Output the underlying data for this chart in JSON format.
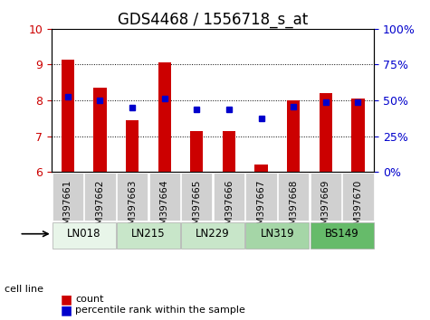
{
  "title": "GDS4468 / 1556718_s_at",
  "samples": [
    "GSM397661",
    "GSM397662",
    "GSM397663",
    "GSM397664",
    "GSM397665",
    "GSM397666",
    "GSM397667",
    "GSM397668",
    "GSM397669",
    "GSM397670"
  ],
  "count_values": [
    9.15,
    8.35,
    7.45,
    9.05,
    7.15,
    7.15,
    6.2,
    8.0,
    8.2,
    8.05
  ],
  "percentile_values": [
    8.1,
    8.0,
    7.8,
    8.05,
    7.75,
    7.75,
    7.5,
    7.82,
    7.95,
    7.95
  ],
  "cell_lines": [
    {
      "name": "LN018",
      "samples": [
        0,
        1
      ],
      "color": "#d4edda"
    },
    {
      "name": "LN215",
      "samples": [
        2,
        3
      ],
      "color": "#c8e6c9"
    },
    {
      "name": "LN229",
      "samples": [
        4,
        5
      ],
      "color": "#c8e6c9"
    },
    {
      "name": "LN319",
      "samples": [
        6,
        7
      ],
      "color": "#a5d6a7"
    },
    {
      "name": "BS149",
      "samples": [
        8,
        9
      ],
      "color": "#66bb6a"
    }
  ],
  "ylim": [
    6,
    10
  ],
  "yticks_left": [
    6,
    7,
    8,
    9,
    10
  ],
  "yticks_right": [
    0,
    25,
    50,
    75,
    100
  ],
  "bar_color": "#cc0000",
  "dot_color": "#0000cc",
  "bar_width": 0.4,
  "background_color": "#ffffff",
  "plot_bg_color": "#ffffff",
  "grid_color": "#000000",
  "title_fontsize": 12,
  "tick_fontsize": 9
}
